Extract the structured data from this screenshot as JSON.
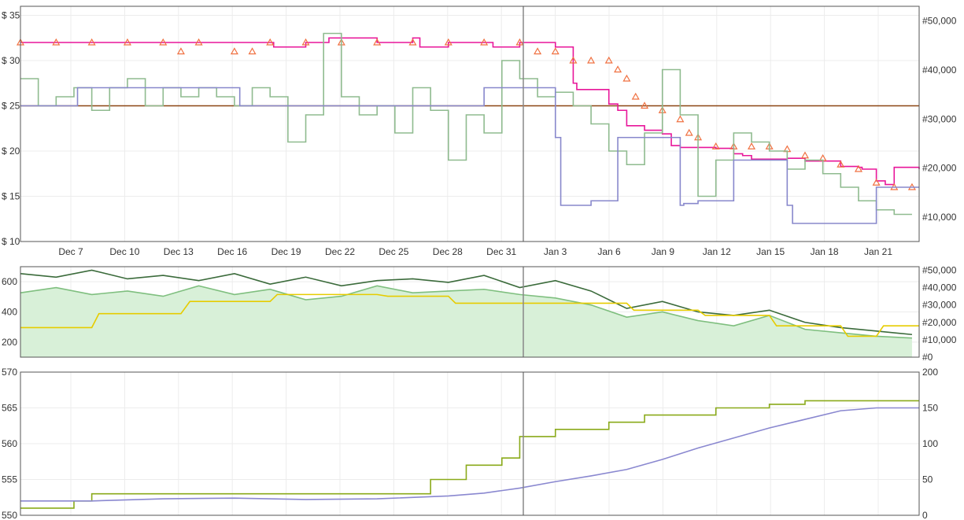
{
  "chart_data": [
    {
      "type": "line",
      "name": "price-panel",
      "x_ticks": [
        "Dec 7",
        "Dec 10",
        "Dec 13",
        "Dec 16",
        "Dec 19",
        "Dec 22",
        "Dec 25",
        "Dec 28",
        "Dec 31",
        "Jan 3",
        "Jan 6",
        "Jan 9",
        "Jan 12",
        "Jan 15",
        "Jan 18",
        "Jan 21"
      ],
      "x_range_days": [
        0,
        50.4
      ],
      "y_left_ticks": [
        "$ 35",
        "$ 30",
        "$ 25",
        "$ 20",
        "$ 15",
        "$ 10"
      ],
      "y_left_range": [
        10,
        36
      ],
      "y_right_ticks": [
        "#50,000",
        "#40,000",
        "#30,000",
        "#20,000",
        "#10,000"
      ],
      "y_right_range": [
        5000,
        53000
      ],
      "cursor_x": "Jan 1",
      "reference_line_y": 25.0,
      "series": [
        {
          "role": "price-primary",
          "color": "#e8169a",
          "style": "step",
          "x": [
            0,
            14,
            14.2,
            16,
            17,
            17.3,
            20,
            22,
            22.4,
            24,
            26,
            26.5,
            28,
            30,
            31,
            31.2,
            33,
            33.5,
            34,
            35,
            36,
            36.5,
            37,
            38,
            39,
            40,
            40.5,
            41,
            42,
            43,
            44,
            45,
            46,
            47,
            47.2,
            48,
            48.5,
            49,
            50.4
          ],
          "y": [
            32,
            32,
            31.5,
            32,
            32,
            32.5,
            32,
            32.5,
            31.5,
            32,
            32,
            31.5,
            32,
            31.5,
            27.5,
            26.8,
            25.2,
            24.5,
            22.8,
            22.3,
            21.9,
            20.6,
            20.4,
            20.4,
            20.3,
            19.7,
            19.5,
            19.1,
            19.1,
            19.2,
            18.9,
            18.9,
            18.3,
            18.2,
            18.0,
            16.7,
            16.3,
            18.2,
            18.0
          ]
        },
        {
          "role": "triangle-offers",
          "color": "#f07040",
          "style": "markers",
          "x": [
            0,
            2,
            4,
            6,
            8,
            9,
            10,
            12,
            13,
            14,
            16,
            18,
            20,
            22,
            24,
            26,
            28,
            29,
            30,
            31,
            32,
            33,
            33.5,
            34,
            34.5,
            35,
            36,
            37,
            37.5,
            38,
            39,
            40,
            41,
            42,
            43,
            44,
            45,
            46,
            47,
            48,
            49,
            50
          ],
          "y": [
            32,
            32,
            32,
            32,
            32,
            31,
            32,
            31,
            31,
            32,
            32,
            32,
            32,
            32,
            32,
            32,
            32,
            31,
            31,
            30,
            30,
            30,
            29,
            28,
            26,
            25,
            24.5,
            23.5,
            22,
            21.5,
            20.5,
            20.5,
            20.5,
            20.5,
            20.2,
            19.5,
            19.2,
            18.5,
            18,
            16.5,
            16,
            16
          ]
        },
        {
          "role": "used-price",
          "color": "#8fbb8f",
          "style": "step",
          "x": [
            0,
            1,
            2,
            3,
            4,
            5,
            6,
            7,
            8,
            9,
            10,
            11,
            12,
            13,
            14,
            15,
            16,
            17,
            18,
            19,
            20,
            21,
            22,
            23,
            24,
            25,
            26,
            27,
            28,
            29,
            30,
            31,
            32,
            33,
            34,
            35,
            36,
            37,
            38,
            39,
            40,
            41,
            42,
            43,
            44,
            45,
            46,
            47,
            48,
            49,
            50
          ],
          "y": [
            28,
            25,
            26,
            27,
            24.5,
            27,
            28,
            25,
            27,
            26,
            27,
            26,
            25,
            27,
            26,
            21,
            24,
            33,
            26,
            24,
            25,
            22,
            27,
            24.5,
            19,
            24,
            22,
            30,
            28,
            26,
            26.5,
            25,
            23,
            20,
            18.5,
            22,
            29,
            24,
            15,
            19,
            22,
            21,
            20,
            18,
            19,
            17.5,
            16,
            14.5,
            13.5,
            13,
            13
          ]
        },
        {
          "role": "new-price-low",
          "color": "#8888cc",
          "style": "step",
          "x": [
            0,
            3,
            3.2,
            10,
            12,
            12.3,
            22.4,
            26,
            26.3,
            30,
            30.3,
            32,
            33.5,
            37,
            37.2,
            38,
            40,
            43,
            43.3,
            48,
            50.4
          ],
          "y": [
            25,
            25,
            27,
            27,
            27,
            25,
            25,
            27,
            27,
            21.5,
            14,
            14.5,
            21.5,
            14,
            14.2,
            14.5,
            19,
            14,
            12,
            16,
            16
          ]
        }
      ]
    },
    {
      "type": "area",
      "name": "rank-panel",
      "x_range_days": [
        0,
        50.4
      ],
      "y_left_ticks": [
        "600",
        "400",
        "200"
      ],
      "y_left_range": [
        100,
        700
      ],
      "y_right_ticks": [
        "#50,000",
        "#40,000",
        "#30,000",
        "#20,000",
        "#10,000",
        "#0"
      ],
      "y_right_range": [
        0,
        52000
      ],
      "series": [
        {
          "role": "sales-rank-area",
          "color": "#7fbf7f",
          "fill": "#d8f0d8",
          "x": [
            0,
            2,
            4,
            6,
            8,
            10,
            12,
            14,
            16,
            18,
            20,
            22,
            24,
            26,
            28,
            30,
            32,
            34,
            36,
            38,
            40,
            42,
            44,
            46,
            48,
            50
          ],
          "y": [
            37000,
            40000,
            36000,
            38000,
            35000,
            41000,
            36000,
            39000,
            33000,
            35000,
            41000,
            37000,
            38000,
            39000,
            36000,
            34000,
            30000,
            23000,
            26000,
            21000,
            18000,
            24000,
            16000,
            14000,
            12000,
            11000
          ]
        },
        {
          "role": "rank-upper",
          "color": "#3b6b3b",
          "x": [
            0,
            2,
            4,
            6,
            8,
            10,
            12,
            14,
            16,
            18,
            20,
            22,
            24,
            26,
            28,
            30,
            32,
            34,
            36,
            38,
            40,
            42,
            44,
            46,
            48,
            50
          ],
          "y": [
            48000,
            46000,
            50000,
            45000,
            47000,
            44000,
            48000,
            42000,
            46000,
            41000,
            44000,
            45000,
            43000,
            47000,
            40000,
            44000,
            38000,
            28000,
            32000,
            26000,
            24000,
            27000,
            20000,
            17000,
            15000,
            13000
          ]
        },
        {
          "role": "list-price-step",
          "color": "#e6cc00",
          "x": [
            0,
            4,
            4.4,
            9,
            9.5,
            14,
            14.4,
            20,
            20.6,
            24,
            24.4,
            28,
            28.4,
            34,
            34.4,
            38,
            38.4,
            42,
            42.4,
            46,
            46.4,
            48,
            48.4,
            50.4
          ],
          "y": [
            17000,
            17000,
            25000,
            25000,
            32000,
            32000,
            36000,
            36000,
            35000,
            35000,
            31000,
            31000,
            31000,
            31000,
            27000,
            27000,
            24000,
            24000,
            18000,
            18000,
            12000,
            12000,
            18000,
            18000
          ]
        }
      ]
    },
    {
      "type": "line",
      "name": "cumulative-panel",
      "x_range_days": [
        0,
        50.4
      ],
      "y_left_ticks": [
        "570",
        "565",
        "560",
        "555",
        "550"
      ],
      "y_left_range": [
        550,
        570
      ],
      "y_right_ticks": [
        "200",
        "150",
        "100",
        "50",
        "0"
      ],
      "y_right_range": [
        0,
        200
      ],
      "series": [
        {
          "role": "count-left",
          "color": "#8aaa1a",
          "style": "step",
          "x": [
            0,
            3,
            4,
            20,
            23,
            25,
            27,
            28,
            30,
            33,
            35,
            39,
            42,
            44,
            46,
            50.4
          ],
          "y": [
            551,
            552,
            553,
            553,
            555,
            557,
            558,
            561,
            562,
            563,
            564,
            565,
            565.5,
            566,
            566,
            566
          ]
        },
        {
          "role": "count-right",
          "color": "#8a88d0",
          "style": "line",
          "x": [
            0,
            4,
            8,
            12,
            16,
            20,
            24,
            26,
            28,
            30,
            32,
            34,
            36,
            38,
            40,
            42,
            44,
            46,
            48,
            50.4
          ],
          "y": [
            20,
            20,
            23,
            24,
            22,
            23,
            27,
            31,
            38,
            47,
            55,
            64,
            78,
            94,
            108,
            122,
            134,
            146,
            150,
            150
          ]
        }
      ]
    }
  ]
}
